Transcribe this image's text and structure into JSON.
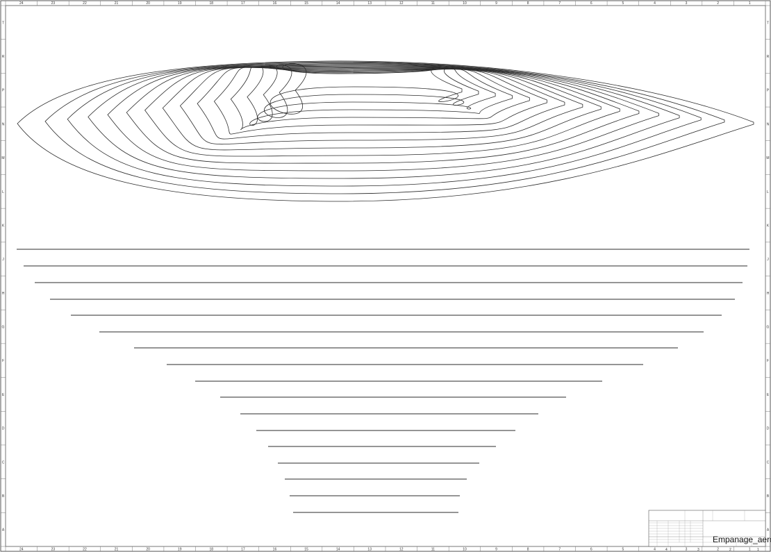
{
  "sheet": {
    "column_labels": [
      "24",
      "23",
      "22",
      "21",
      "20",
      "19",
      "18",
      "17",
      "16",
      "15",
      "14",
      "13",
      "12",
      "11",
      "10",
      "9",
      "8",
      "7",
      "6",
      "5",
      "4",
      "3",
      "2",
      "1"
    ],
    "row_labels": [
      "T",
      "R",
      "P",
      "N",
      "M",
      "L",
      "K",
      "J",
      "H",
      "G",
      "F",
      "E",
      "D",
      "C",
      "B",
      "A"
    ]
  },
  "title_block": {
    "drawing_name": "Empanage_aerofoil",
    "bottom_column_labels": [
      "4",
      "3",
      "2",
      "1"
    ]
  },
  "colors": {
    "line": "#2b2b2b",
    "border": "#555555",
    "background": "#ffffff"
  }
}
